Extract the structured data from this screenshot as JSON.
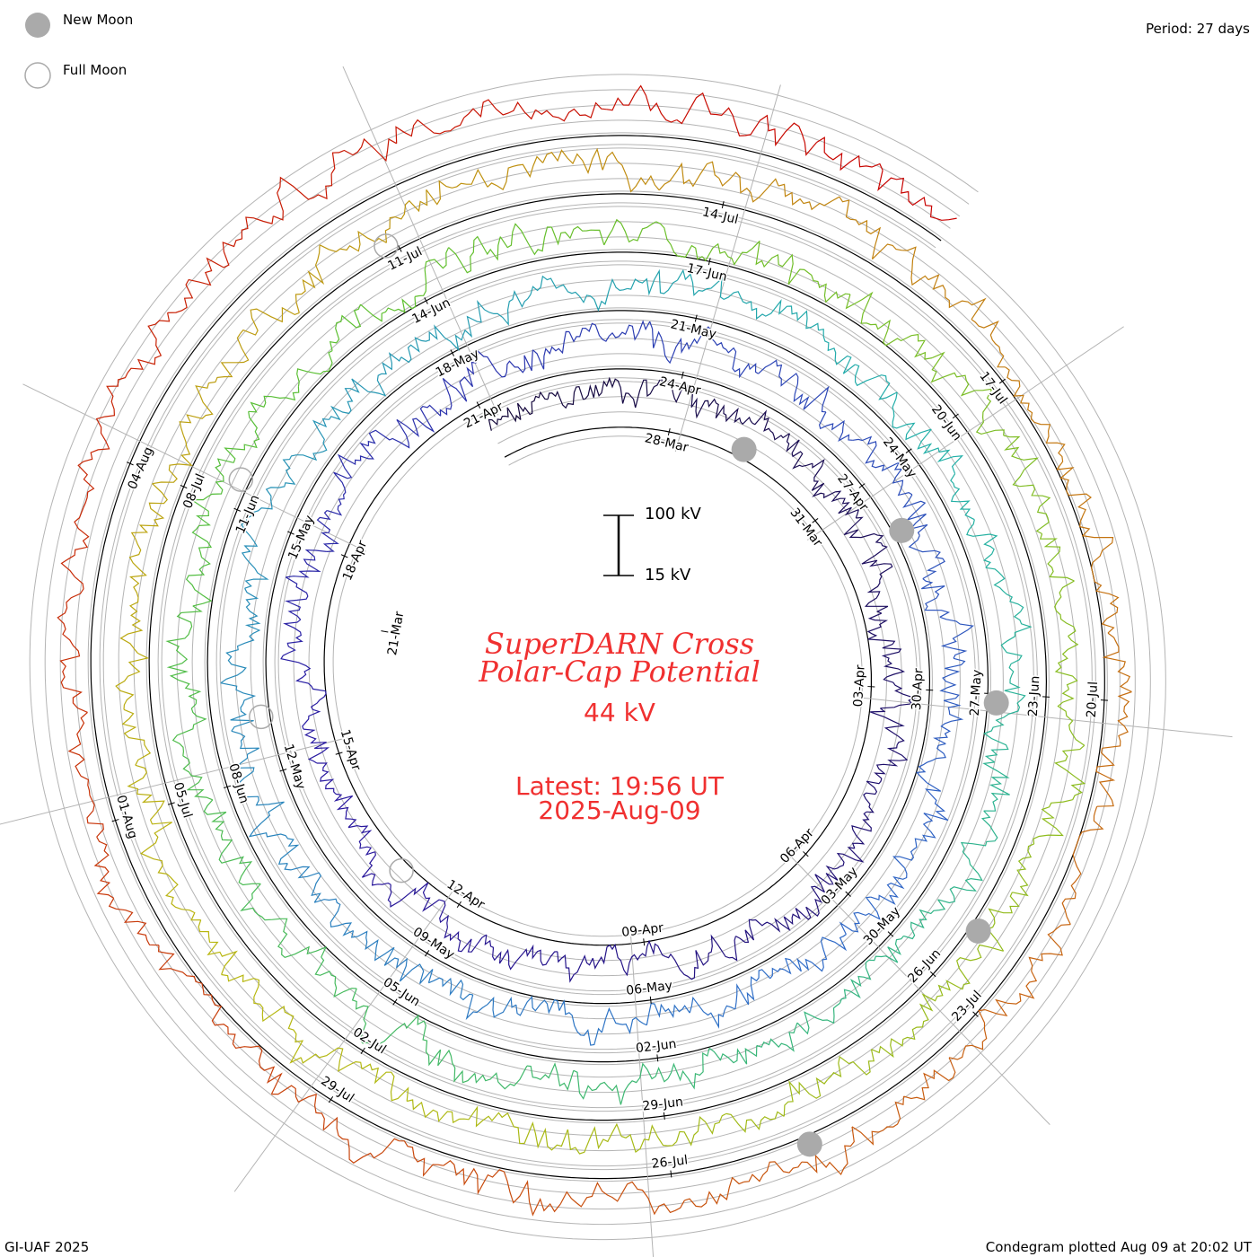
{
  "legend": {
    "new_moon": "New Moon",
    "full_moon": "Full Moon"
  },
  "period_label": "Period: 27 days",
  "credit": "GI-UAF 2025",
  "plotted": "Condegram plotted Aug 09 at 20:02 UT",
  "center": {
    "title_line1": "SuperDARN Cross",
    "title_line2": "Polar-Cap Potential",
    "current_value": "44 kV",
    "latest_line1": "Latest: 19:56 UT",
    "latest_line2": "2025-Aug-09",
    "scale_top": "100 kV",
    "scale_bottom": "15 kV"
  },
  "chart_data": {
    "type": "line",
    "subtype": "spiral condegram",
    "title": "SuperDARN Cross Polar-Cap Potential",
    "period_days": 27,
    "start_date": "2025-03-25",
    "end_date": "2025-08-09 19:56 UT",
    "baseline_kv": 15,
    "scale_kv": [
      15,
      100
    ],
    "daily_kv": [
      55,
      62,
      70,
      75,
      68,
      60,
      58,
      52,
      48,
      45,
      50,
      55,
      60,
      52,
      46,
      44,
      48,
      55,
      50,
      45,
      42,
      40,
      46,
      52,
      58,
      62,
      55,
      50,
      48,
      52,
      56,
      60,
      58,
      54,
      50,
      46,
      44,
      48,
      52,
      56,
      50,
      46,
      42,
      40,
      44,
      48,
      52,
      55,
      58,
      52,
      48,
      45,
      42,
      40,
      38,
      42,
      46,
      50,
      54,
      50,
      46,
      44,
      48,
      52,
      55,
      50,
      46,
      42,
      40,
      44,
      48,
      52,
      50,
      46,
      42,
      44,
      48,
      52,
      56,
      52,
      48,
      44,
      42,
      40,
      38,
      36,
      40,
      44,
      48,
      52,
      55,
      58,
      52,
      48,
      44,
      40,
      38,
      42,
      46,
      50,
      54,
      50,
      46,
      42,
      40,
      44,
      48,
      52,
      56,
      60,
      55,
      50,
      46,
      42,
      40,
      38,
      36,
      34,
      32,
      34,
      38,
      42,
      46,
      50,
      48,
      44,
      40,
      36,
      38,
      42,
      48,
      55,
      62,
      68,
      72,
      75,
      78,
      70,
      58,
      44
    ],
    "date_labels": [
      {
        "d": -6,
        "label": "21-Mar"
      },
      {
        "d": 1,
        "label": "28-Mar"
      },
      {
        "d": 4,
        "label": "31-Mar"
      },
      {
        "d": 7,
        "label": "03-Apr"
      },
      {
        "d": 10,
        "label": "06-Apr"
      },
      {
        "d": 13,
        "label": "09-Apr"
      },
      {
        "d": 16,
        "label": "12-Apr"
      },
      {
        "d": 19,
        "label": "15-Apr"
      },
      {
        "d": 22,
        "label": "18-Apr"
      },
      {
        "d": 25,
        "label": "21-Apr"
      },
      {
        "d": 28,
        "label": "24-Apr"
      },
      {
        "d": 31,
        "label": "27-Apr"
      },
      {
        "d": 34,
        "label": "30-Apr"
      },
      {
        "d": 37,
        "label": "03-May"
      },
      {
        "d": 40,
        "label": "06-May"
      },
      {
        "d": 43,
        "label": "09-May"
      },
      {
        "d": 46,
        "label": "12-May"
      },
      {
        "d": 49,
        "label": "15-May"
      },
      {
        "d": 52,
        "label": "18-May"
      },
      {
        "d": 55,
        "label": "21-May"
      },
      {
        "d": 58,
        "label": "24-May"
      },
      {
        "d": 61,
        "label": "27-May"
      },
      {
        "d": 64,
        "label": "30-May"
      },
      {
        "d": 67,
        "label": "02-Jun"
      },
      {
        "d": 70,
        "label": "05-Jun"
      },
      {
        "d": 73,
        "label": "08-Jun"
      },
      {
        "d": 76,
        "label": "11-Jun"
      },
      {
        "d": 79,
        "label": "14-Jun"
      },
      {
        "d": 82,
        "label": "17-Jun"
      },
      {
        "d": 85,
        "label": "20-Jun"
      },
      {
        "d": 88,
        "label": "23-Jun"
      },
      {
        "d": 91,
        "label": "26-Jun"
      },
      {
        "d": 94,
        "label": "29-Jun"
      },
      {
        "d": 97,
        "label": "02-Jul"
      },
      {
        "d": 100,
        "label": "05-Jul"
      },
      {
        "d": 103,
        "label": "08-Jul"
      },
      {
        "d": 106,
        "label": "11-Jul"
      },
      {
        "d": 109,
        "label": "14-Jul"
      },
      {
        "d": 112,
        "label": "17-Jul"
      },
      {
        "d": 115,
        "label": "20-Jul"
      },
      {
        "d": 118,
        "label": "23-Jul"
      },
      {
        "d": 121,
        "label": "26-Jul"
      },
      {
        "d": 124,
        "label": "29-Jul"
      },
      {
        "d": 127,
        "label": "01-Aug"
      },
      {
        "d": 130,
        "label": "04-Aug"
      }
    ],
    "new_moons_day": [
      2.3,
      31.8,
      61.1,
      90.4,
      119.8
    ],
    "full_moons_day": [
      17.0,
      46.7,
      76.3,
      105.9
    ]
  },
  "colors": {
    "start": "#14083a",
    "c1": "#2a18a0",
    "c2": "#2f6cc8",
    "c3": "#22b0a8",
    "c4": "#5cc030",
    "c5": "#b8b810",
    "c6": "#c86010",
    "end": "#c80000",
    "moon": "#aaaaaa",
    "grid": "#b4b4b4"
  }
}
